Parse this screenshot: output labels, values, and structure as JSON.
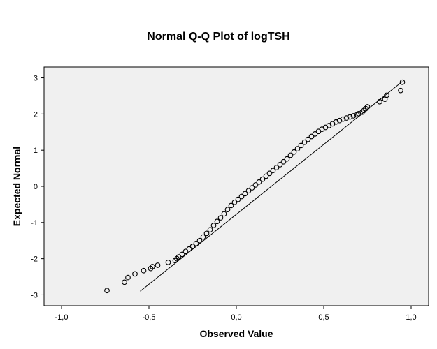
{
  "chart_data": {
    "type": "scatter",
    "title": "Normal Q-Q Plot of logTSH",
    "xlabel": "Observed Value",
    "ylabel": "Expected Normal",
    "xlim": [
      -1.1,
      1.1
    ],
    "ylim": [
      -3.3,
      3.3
    ],
    "x_ticks": [
      -1.0,
      -0.5,
      0.0,
      0.5,
      1.0
    ],
    "x_tick_labels": [
      "-1,0",
      "-0,5",
      "0,0",
      "0,5",
      "1,0"
    ],
    "y_ticks": [
      3,
      2,
      1,
      0,
      -1,
      -2,
      -3
    ],
    "y_tick_labels": [
      "3",
      "2",
      "1",
      "0",
      "-1",
      "-2",
      "-3"
    ],
    "grid": false,
    "colors": {
      "plot_background": "#f0f0f0",
      "points": "#000000",
      "line": "#000000"
    },
    "reference_line": {
      "x": [
        -0.55,
        0.95
      ],
      "y": [
        -2.9,
        2.9
      ]
    },
    "series": [
      {
        "values_x": [
          -0.74,
          -0.64,
          -0.62,
          -0.58,
          -0.53,
          -0.49,
          -0.48,
          -0.45,
          -0.39,
          -0.35,
          -0.34,
          -0.33,
          -0.31,
          -0.29,
          -0.27,
          -0.25,
          -0.23,
          -0.21,
          -0.19,
          -0.17,
          -0.15,
          -0.13,
          -0.11,
          -0.09,
          -0.07,
          -0.05,
          -0.03,
          -0.01,
          0.01,
          0.03,
          0.05,
          0.07,
          0.09,
          0.11,
          0.13,
          0.15,
          0.17,
          0.19,
          0.21,
          0.23,
          0.25,
          0.27,
          0.29,
          0.31,
          0.33,
          0.35,
          0.37,
          0.39,
          0.41,
          0.43,
          0.45,
          0.47,
          0.49,
          0.51,
          0.53,
          0.55,
          0.57,
          0.59,
          0.61,
          0.63,
          0.65,
          0.67,
          0.69,
          0.7,
          0.72,
          0.73,
          0.74,
          0.75,
          0.82,
          0.85,
          0.86,
          0.94,
          0.95
        ],
        "values_y": [
          -2.88,
          -2.65,
          -2.52,
          -2.42,
          -2.33,
          -2.27,
          -2.22,
          -2.18,
          -2.1,
          -2.05,
          -2.0,
          -1.95,
          -1.88,
          -1.8,
          -1.73,
          -1.66,
          -1.58,
          -1.5,
          -1.4,
          -1.3,
          -1.2,
          -1.08,
          -0.97,
          -0.87,
          -0.76,
          -0.64,
          -0.53,
          -0.44,
          -0.36,
          -0.28,
          -0.2,
          -0.12,
          -0.04,
          0.04,
          0.12,
          0.2,
          0.28,
          0.36,
          0.44,
          0.52,
          0.6,
          0.68,
          0.76,
          0.86,
          0.95,
          1.04,
          1.13,
          1.22,
          1.3,
          1.38,
          1.45,
          1.52,
          1.58,
          1.63,
          1.68,
          1.73,
          1.78,
          1.82,
          1.86,
          1.89,
          1.92,
          1.95,
          1.98,
          2.01,
          2.05,
          2.1,
          2.15,
          2.2,
          2.34,
          2.41,
          2.52,
          2.65,
          2.88
        ]
      }
    ]
  }
}
